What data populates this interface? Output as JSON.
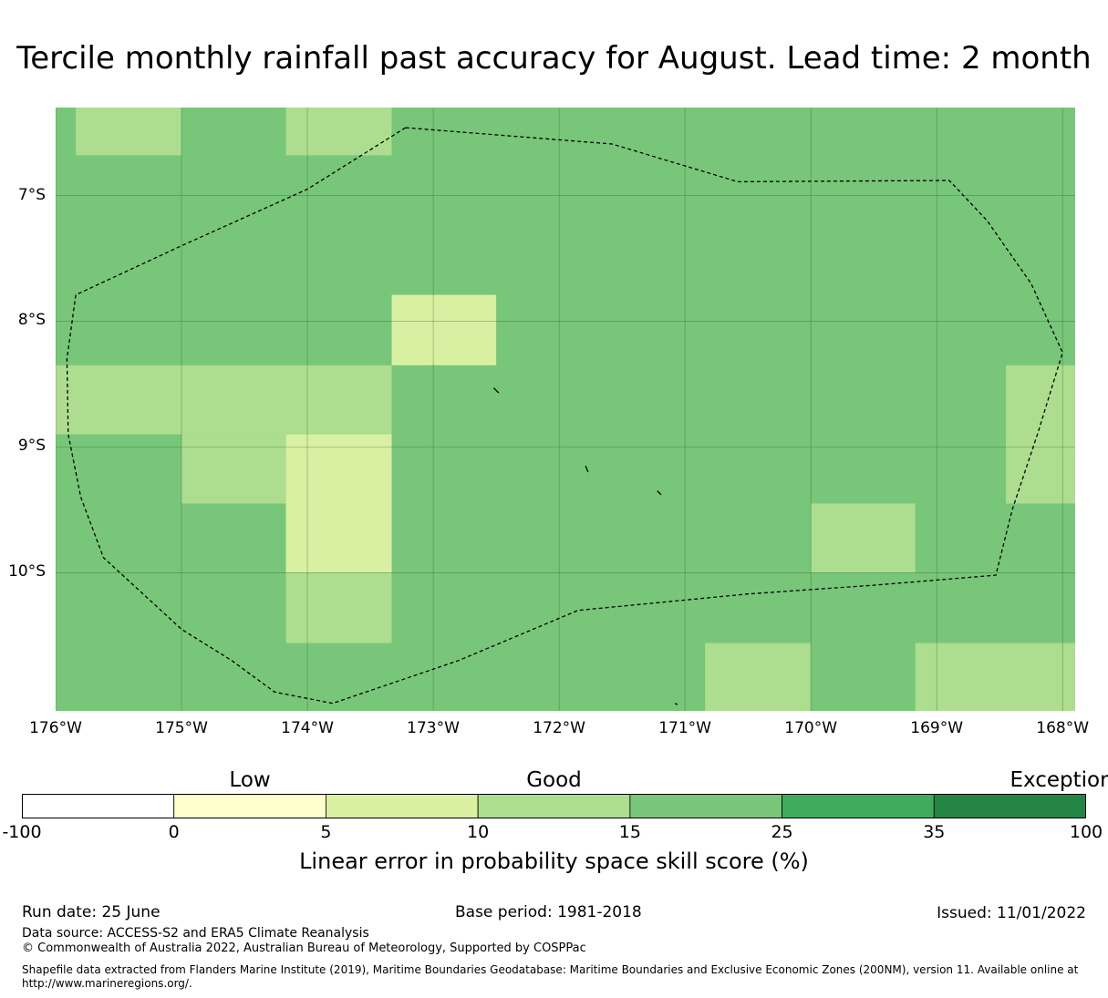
{
  "title": "Tercile monthly rainfall past accuracy for August. Lead time: 2 month",
  "map": {
    "lon_range": [
      -176,
      -167.9
    ],
    "lat_range": [
      -11.1,
      -6.3
    ],
    "background_class": "15-25",
    "y_ticks": [
      {
        "lat": -7,
        "label": "7°S"
      },
      {
        "lat": -8,
        "label": "8°S"
      },
      {
        "lat": -9,
        "label": "9°S"
      },
      {
        "lat": -10,
        "label": "10°S"
      }
    ],
    "x_ticks": [
      {
        "lon": -176,
        "label": "176°W"
      },
      {
        "lon": -175,
        "label": "175°W"
      },
      {
        "lon": -174,
        "label": "174°W"
      },
      {
        "lon": -173,
        "label": "173°W"
      },
      {
        "lon": -172,
        "label": "172°W"
      },
      {
        "lon": -171,
        "label": "171°W"
      },
      {
        "lon": -170,
        "label": "170°W"
      },
      {
        "lon": -169,
        "label": "169°W"
      },
      {
        "lon": -168,
        "label": "168°W"
      }
    ],
    "cells": [
      {
        "lon": [
          -175.84,
          -175.0
        ],
        "lat": [
          -6.68,
          -6.3
        ],
        "class": "10-15"
      },
      {
        "lon": [
          -174.17,
          -173.33
        ],
        "lat": [
          -6.68,
          -6.3
        ],
        "class": "10-15"
      },
      {
        "lon": [
          -173.33,
          -172.5
        ],
        "lat": [
          -8.35,
          -7.79
        ],
        "class": "5-10"
      },
      {
        "lon": [
          -176.0,
          -175.0
        ],
        "lat": [
          -8.9,
          -8.35
        ],
        "class": "10-15"
      },
      {
        "lon": [
          -175.0,
          -173.33
        ],
        "lat": [
          -8.9,
          -8.35
        ],
        "class": "10-15"
      },
      {
        "lon": [
          -175.0,
          -174.17
        ],
        "lat": [
          -9.45,
          -8.9
        ],
        "class": "10-15"
      },
      {
        "lon": [
          -174.17,
          -173.33
        ],
        "lat": [
          -10.0,
          -8.9
        ],
        "class": "5-10"
      },
      {
        "lon": [
          -174.17,
          -173.33
        ],
        "lat": [
          -10.56,
          -10.0
        ],
        "class": "10-15"
      },
      {
        "lon": [
          -170.0,
          -169.17
        ],
        "lat": [
          -10.0,
          -9.45
        ],
        "class": "10-15"
      },
      {
        "lon": [
          -168.45,
          -167.9
        ],
        "lat": [
          -9.45,
          -8.35
        ],
        "class": "10-15"
      },
      {
        "lon": [
          -170.84,
          -170.0
        ],
        "lat": [
          -11.1,
          -10.56
        ],
        "class": "10-15"
      },
      {
        "lon": [
          -169.17,
          -167.9
        ],
        "lat": [
          -11.1,
          -10.56
        ],
        "class": "10-15"
      }
    ],
    "eez_boundary": [
      [
        -173.22,
        -6.46
      ],
      [
        -171.58,
        -6.59
      ],
      [
        -170.58,
        -6.89
      ],
      [
        -168.9,
        -6.88
      ],
      [
        -168.6,
        -7.2
      ],
      [
        -168.25,
        -7.7
      ],
      [
        -168.0,
        -8.25
      ],
      [
        -168.2,
        -8.9
      ],
      [
        -168.4,
        -9.5
      ],
      [
        -168.53,
        -10.02
      ],
      [
        -169.5,
        -10.1
      ],
      [
        -170.5,
        -10.17
      ],
      [
        -171.85,
        -10.3
      ],
      [
        -172.8,
        -10.7
      ],
      [
        -173.8,
        -11.04
      ],
      [
        -174.26,
        -10.95
      ],
      [
        -174.6,
        -10.7
      ],
      [
        -175.0,
        -10.45
      ],
      [
        -175.62,
        -9.88
      ],
      [
        -175.8,
        -9.4
      ],
      [
        -175.9,
        -8.9
      ],
      [
        -175.91,
        -8.3
      ],
      [
        -175.84,
        -7.79
      ],
      [
        -175.0,
        -7.4
      ],
      [
        -174.0,
        -6.95
      ],
      [
        -173.22,
        -6.46
      ]
    ],
    "islands": [
      [
        [
          -172.52,
          -8.53
        ],
        [
          -172.48,
          -8.57
        ]
      ],
      [
        [
          -171.79,
          -9.15
        ],
        [
          -171.77,
          -9.2
        ]
      ],
      [
        [
          -171.22,
          -9.35
        ],
        [
          -171.19,
          -9.38
        ]
      ],
      [
        [
          -171.08,
          -11.04
        ],
        [
          -171.06,
          -11.05
        ]
      ]
    ]
  },
  "colorbar": {
    "bins": [
      {
        "from": "-100",
        "to": "0",
        "color": "#ffffff"
      },
      {
        "from": "0",
        "to": "5",
        "color": "#ffffcc"
      },
      {
        "from": "5",
        "to": "10",
        "color": "#d9f0a3"
      },
      {
        "from": "10",
        "to": "15",
        "color": "#addd8e"
      },
      {
        "from": "15",
        "to": "25",
        "color": "#78c679"
      },
      {
        "from": "25",
        "to": "35",
        "color": "#41ab5d"
      },
      {
        "from": "35",
        "to": "100",
        "color": "#238443"
      }
    ],
    "tick_labels": [
      "-100",
      "0",
      "5",
      "10",
      "15",
      "25",
      "35",
      "100"
    ],
    "categories": [
      {
        "label": "Low",
        "at_bin": 1
      },
      {
        "label": "Good",
        "at_bin": 3.5
      },
      {
        "label": "Exceptional",
        "at_bin": 6.4
      }
    ],
    "title": "Linear error in probability space skill score (%)"
  },
  "class_colors": {
    "0-5": "#ffffcc",
    "5-10": "#d9f0a3",
    "10-15": "#addd8e",
    "15-25": "#78c679"
  },
  "footer": {
    "run_date": "Run date: 25 June",
    "base_period": "Base period: 1981-2018",
    "issued": "Issued: 11/01/2022",
    "data_source": "Data source: ACCESS-S2 and ERA5 Climate Reanalysis",
    "copyright": "© Commonwealth of Australia 2022, Australian Bureau of Meteorology, Supported by COSPPac",
    "shapefile_note": "Shapefile data extracted from Flanders Marine Institute (2019), Maritime Boundaries Geodatabase: Maritime Boundaries and Exclusive Economic Zones (200NM), version 11. Available online at http://www.marineregions.org/."
  }
}
